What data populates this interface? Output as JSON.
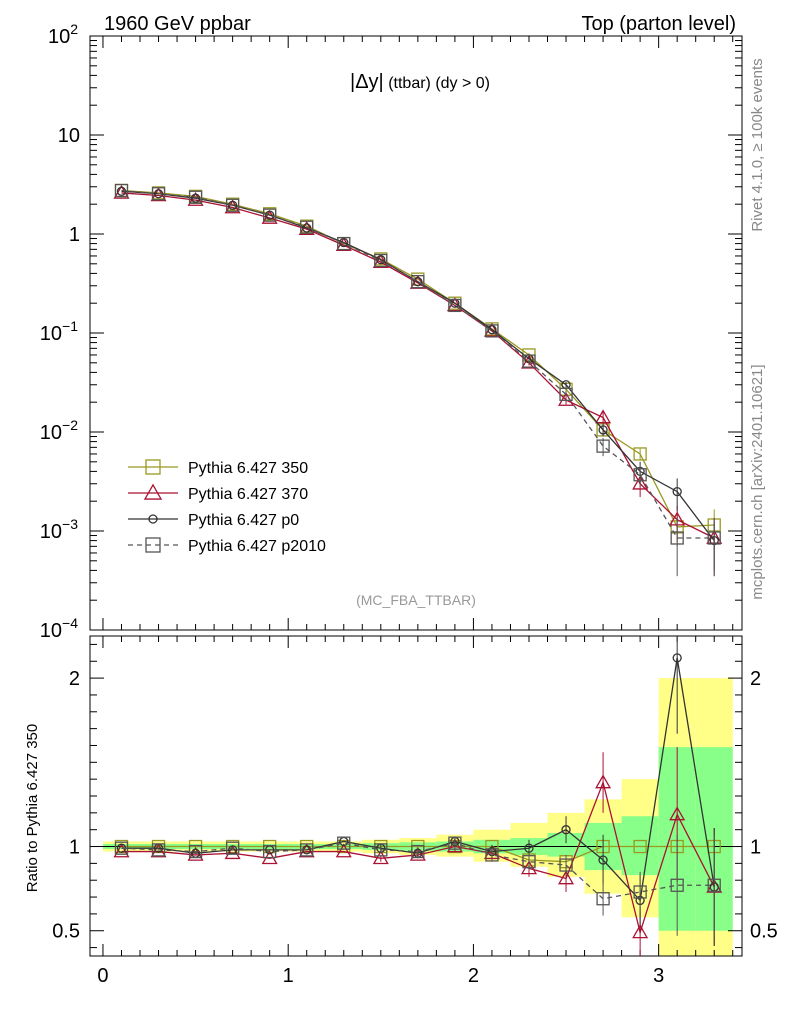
{
  "header": {
    "left": "1960 GeV ppbar",
    "right": "Top (parton level)"
  },
  "side_labels": {
    "rivet": "Rivet 4.1.0, ≥ 100k events",
    "mcplots": "mcplots.cern.ch [arXiv:2401.10621]"
  },
  "chart_data": {
    "type": "line",
    "title": "|Δy| (ttbar) (dy > 0)",
    "analysis": "(MC_FBA_TTBAR)",
    "xlabel": "",
    "ylabel_ratio": "Ratio to Pythia 6.427 350",
    "xlim": [
      -0.07,
      3.45
    ],
    "ylim_main": [
      0.0001,
      100
    ],
    "ylim_ratio": [
      0.35,
      2.25
    ],
    "x_ticks": [
      "0",
      "1",
      "2",
      "3"
    ],
    "y_ticks_main": [
      {
        "base": "10",
        "exp": "2"
      },
      {
        "base": "10",
        "exp": ""
      },
      {
        "base": "1",
        "exp": ""
      },
      {
        "base": "10",
        "exp": "−1"
      },
      {
        "base": "10",
        "exp": "−2"
      },
      {
        "base": "10",
        "exp": "−3"
      },
      {
        "base": "10",
        "exp": "−4"
      }
    ],
    "y_ticks_ratio": [
      "2",
      "1",
      "0.5"
    ],
    "x": [
      0.1,
      0.3,
      0.5,
      0.7,
      0.9,
      1.1,
      1.3,
      1.5,
      1.7,
      1.9,
      2.1,
      2.3,
      2.5,
      2.7,
      2.9,
      3.1,
      3.3
    ],
    "series": [
      {
        "name": "Pythia 6.427 350",
        "color": "#999922",
        "marker": "square",
        "dash": false,
        "values": [
          2.75,
          2.6,
          2.4,
          2.0,
          1.6,
          1.2,
          0.8,
          0.56,
          0.35,
          0.2,
          0.11,
          0.06,
          0.027,
          0.0105,
          0.006,
          0.0011,
          0.00115
        ],
        "errors": [
          0,
          0,
          0,
          0,
          0,
          0,
          0,
          0,
          0,
          0,
          0,
          0.003,
          0.002,
          0.001,
          0.0008,
          0.0004,
          0.0005
        ],
        "ratio": [
          1,
          1,
          1,
          1,
          1,
          1,
          1,
          1,
          1,
          1,
          1,
          0.92,
          0.91,
          1,
          1,
          1,
          1
        ],
        "ratio_errors": [
          0,
          0,
          0,
          0,
          0,
          0,
          0,
          0,
          0,
          0,
          0,
          0,
          0,
          0,
          0,
          0,
          0
        ]
      },
      {
        "name": "Pythia 6.427 370",
        "color": "#aa1133",
        "marker": "triangle",
        "dash": false,
        "values": [
          2.6,
          2.45,
          2.2,
          1.85,
          1.45,
          1.12,
          0.77,
          0.52,
          0.32,
          0.19,
          0.105,
          0.05,
          0.021,
          0.014,
          0.003,
          0.0013,
          0.00085
        ],
        "errors": [
          0,
          0,
          0,
          0,
          0,
          0,
          0,
          0,
          0,
          0,
          0,
          0.003,
          0.002,
          0.002,
          0.0008,
          0.0005,
          0.0005
        ],
        "ratio": [
          0.97,
          0.97,
          0.95,
          0.96,
          0.93,
          0.97,
          0.97,
          0.93,
          0.95,
          1.0,
          0.96,
          0.87,
          0.81,
          1.38,
          0.49,
          1.19,
          0.76
        ],
        "ratio_errors": [
          0,
          0,
          0,
          0,
          0,
          0,
          0,
          0.02,
          0.02,
          0.03,
          0.04,
          0.05,
          0.08,
          0.18,
          0.15,
          0.4,
          0.35
        ]
      },
      {
        "name": "Pythia 6.427 p0",
        "color": "#333333",
        "marker": "circle",
        "dash": false,
        "values": [
          2.7,
          2.55,
          2.3,
          1.95,
          1.55,
          1.15,
          0.82,
          0.55,
          0.33,
          0.2,
          0.108,
          0.055,
          0.03,
          0.0105,
          0.004,
          0.0025,
          0.0008
        ],
        "errors": [
          0,
          0,
          0,
          0,
          0,
          0,
          0,
          0,
          0,
          0,
          0,
          0.003,
          0.002,
          0.0015,
          0.001,
          0.0009,
          0.0004
        ],
        "ratio": [
          0.99,
          0.99,
          0.96,
          0.98,
          0.98,
          0.98,
          1.03,
          0.99,
          0.96,
          1.03,
          0.97,
          0.99,
          1.1,
          0.92,
          0.68,
          2.12,
          0.76
        ],
        "ratio_errors": [
          0,
          0,
          0,
          0,
          0,
          0,
          0,
          0.02,
          0.02,
          0.03,
          0.04,
          0.05,
          0.08,
          0.15,
          0.15,
          0.45,
          0.35
        ]
      },
      {
        "name": "Pythia 6.427 p2010",
        "color": "#555555",
        "marker": "square",
        "dash": true,
        "values": [
          2.75,
          2.55,
          2.35,
          1.95,
          1.55,
          1.17,
          0.8,
          0.54,
          0.33,
          0.19,
          0.105,
          0.052,
          0.024,
          0.0072,
          0.0037,
          0.00085,
          0.00085
        ],
        "errors": [
          0,
          0,
          0,
          0,
          0,
          0,
          0,
          0,
          0,
          0,
          0,
          0.003,
          0.002,
          0.0015,
          0.0008,
          0.0005,
          0.0005
        ],
        "ratio": [
          0.99,
          0.98,
          0.97,
          0.99,
          0.97,
          0.98,
          1.02,
          0.98,
          0.97,
          1.02,
          0.95,
          0.91,
          0.89,
          0.69,
          0.73,
          0.77,
          0.77
        ],
        "ratio_errors": [
          0,
          0,
          0,
          0,
          0,
          0,
          0,
          0.02,
          0.02,
          0.03,
          0.04,
          0.05,
          0.06,
          0.1,
          0.12,
          0.3,
          0.3
        ]
      }
    ],
    "bands": {
      "bin_edges": [
        0.0,
        0.2,
        0.4,
        0.6,
        0.8,
        1.0,
        1.2,
        1.4,
        1.6,
        1.8,
        2.0,
        2.2,
        2.4,
        2.6,
        2.8,
        3.0,
        3.2,
        3.4
      ],
      "green_lo": [
        0.985,
        0.985,
        0.985,
        0.985,
        0.985,
        0.985,
        0.985,
        0.98,
        0.975,
        0.97,
        0.96,
        0.95,
        0.94,
        0.86,
        0.83,
        0.5,
        0.5
      ],
      "green_hi": [
        1.015,
        1.015,
        1.015,
        1.015,
        1.015,
        1.015,
        1.015,
        1.02,
        1.025,
        1.03,
        1.04,
        1.05,
        1.08,
        1.14,
        1.18,
        1.59,
        1.59
      ],
      "yellow_lo": [
        0.97,
        0.97,
        0.97,
        0.97,
        0.97,
        0.97,
        0.97,
        0.96,
        0.95,
        0.94,
        0.91,
        0.88,
        0.82,
        0.72,
        0.58,
        0.35,
        0.35
      ],
      "yellow_hi": [
        1.03,
        1.03,
        1.03,
        1.03,
        1.03,
        1.03,
        1.03,
        1.04,
        1.05,
        1.07,
        1.1,
        1.14,
        1.2,
        1.28,
        1.4,
        2.0,
        2.0
      ],
      "green_color": "#88ff88",
      "yellow_color": "#ffff88"
    }
  }
}
